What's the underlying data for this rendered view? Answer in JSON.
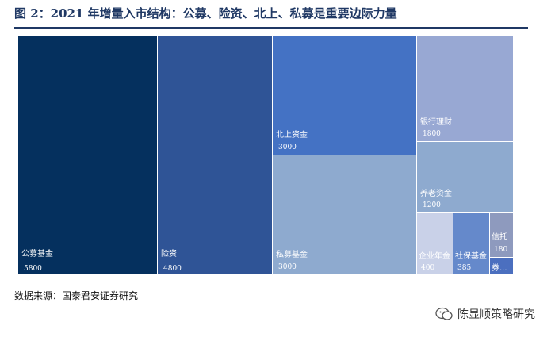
{
  "header": {
    "title": "图 2：2021 年增量入市结构：公募、险资、北上、私募是重要边际力量"
  },
  "footer": {
    "source": "数据来源：国泰君安证券研究",
    "brand": "陈显顺策略研究"
  },
  "colors": {
    "title": "#1f3864",
    "tiles": [
      "#05305e",
      "#2f5496",
      "#4472c4",
      "#8eaacf",
      "#98a8d3",
      "#8eaacf",
      "#c9d1e8",
      "#6589cb",
      "#8e9abe",
      "#4b6fbf"
    ]
  },
  "chart_data": {
    "type": "treemap",
    "title": "",
    "items": [
      {
        "name": "公募基金",
        "value": 5800
      },
      {
        "name": "险资",
        "value": 4800
      },
      {
        "name": "北上资金",
        "value": 3000
      },
      {
        "name": "私募基金",
        "value": 3000
      },
      {
        "name": "银行理财",
        "value": 1800
      },
      {
        "name": "养老资金",
        "value": 1200
      },
      {
        "name": "企业年金",
        "value": 400
      },
      {
        "name": "社保基金",
        "value": 385
      },
      {
        "name": "信托",
        "value": 180
      },
      {
        "name": "券...",
        "value": null
      }
    ]
  }
}
